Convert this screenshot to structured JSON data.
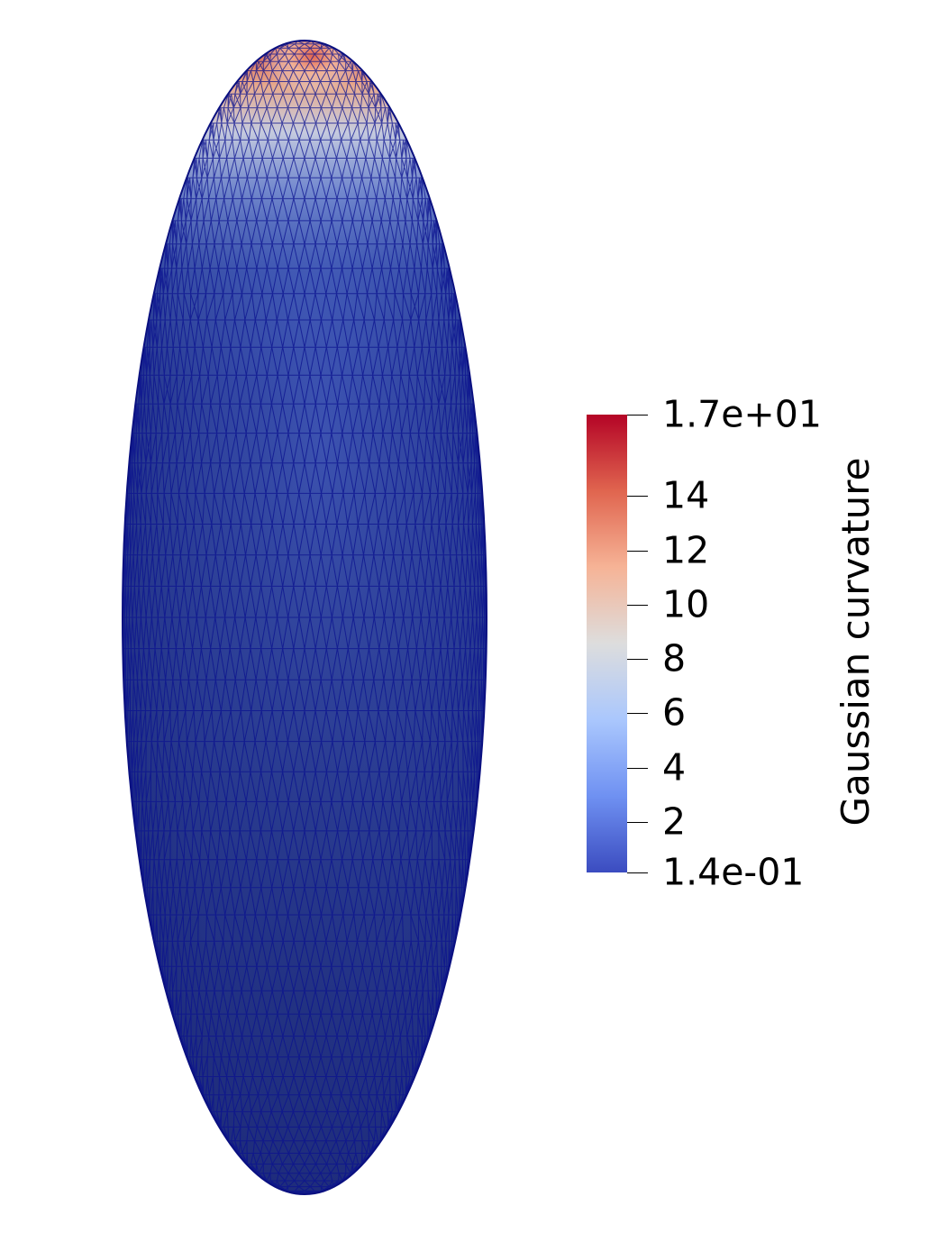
{
  "figure": {
    "surface": "ellipsoid",
    "render": "triangulated-mesh",
    "mesh_line_color": "#0b128f",
    "base_surface_color": "#2b3e96"
  },
  "legend": {
    "title": "Gaussian curvature",
    "min_label": "1.4e-01",
    "max_label": "1.7e+01",
    "min_value": 0.14,
    "max_value": 17,
    "ticks": [
      {
        "label": "1.7e+01",
        "value": 17
      },
      {
        "label": "14",
        "value": 14
      },
      {
        "label": "12",
        "value": 12
      },
      {
        "label": "10",
        "value": 10
      },
      {
        "label": "8",
        "value": 8
      },
      {
        "label": "6",
        "value": 6
      },
      {
        "label": "4",
        "value": 4
      },
      {
        "label": "2",
        "value": 2
      },
      {
        "label": "1.4e-01",
        "value": 0.14
      }
    ],
    "colormap": [
      "#3b4cc0",
      "#6f91f2",
      "#aac7fd",
      "#dddddd",
      "#f6b396",
      "#e0654f",
      "#b40426"
    ]
  }
}
